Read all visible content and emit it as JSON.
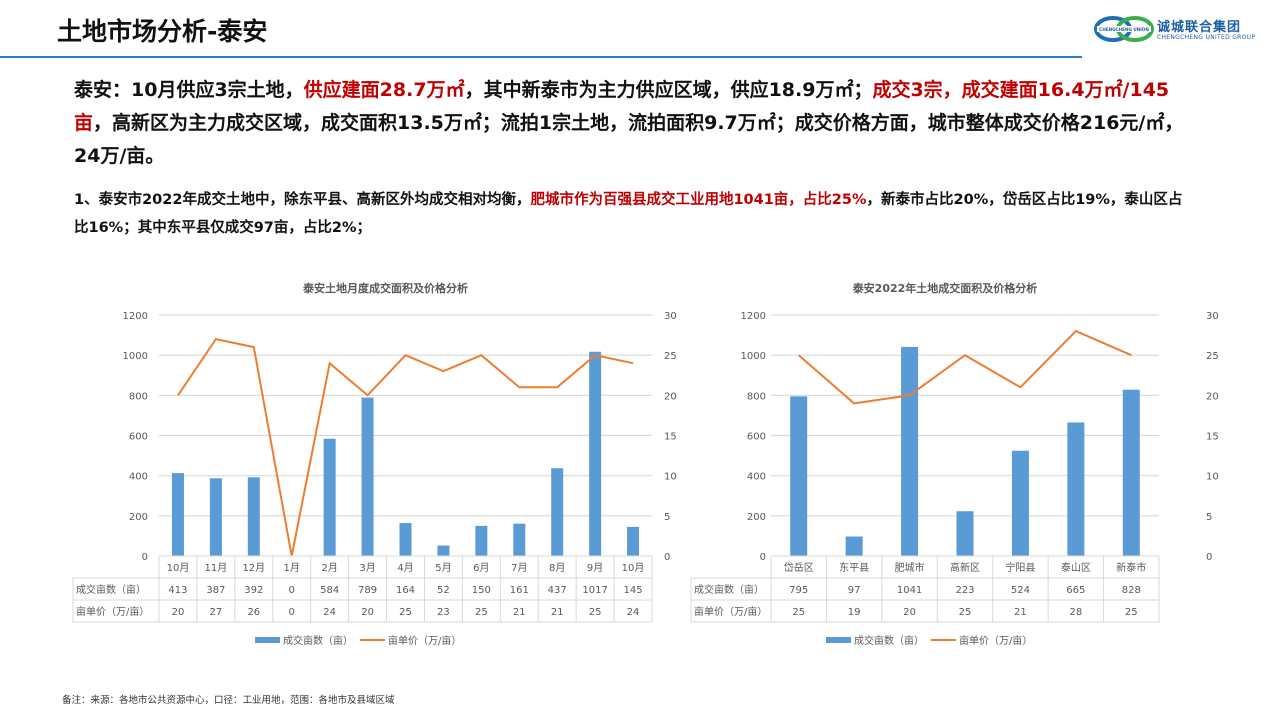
{
  "header": {
    "title": "土地市场分析-泰安",
    "logo": {
      "cn": "诚城联合集团",
      "en": "CHENGCHENG UNITED GROUP",
      "mark_text": "CHENGCHENG UNION"
    }
  },
  "summary": {
    "segments": [
      {
        "text": "泰安：10月供应3宗土地，",
        "red": false
      },
      {
        "text": "供应建面28.7万㎡",
        "red": true
      },
      {
        "text": "，其中新泰市为主力供应区域，供应18.9万㎡；",
        "red": false
      },
      {
        "text": "成交3宗，成交建面16.4万㎡/145亩",
        "red": true
      },
      {
        "text": "，高新区为主力成交区域，成交面积13.5万㎡；流拍1宗土地，流拍面积9.7万㎡；成交价格方面，城市整体成交价格216元/㎡，24万/亩。",
        "red": false
      }
    ]
  },
  "point": {
    "segments": [
      {
        "text": "1、泰安市2022年成交土地中，除东平县、高新区外均成交相对均衡，",
        "red": false
      },
      {
        "text": "肥城市作为百强县成交工业用地1041亩，占比25%",
        "red": true
      },
      {
        "text": "，新泰市占比20%，岱岳区占比19%，泰山区占比16%；其中东平县仅成交97亩，占比2%；",
        "red": false
      }
    ]
  },
  "colors": {
    "bar": "#5b9bd5",
    "line": "#ed7d31",
    "grid": "#d9d9d9",
    "accent_red": "#c00000",
    "rule_blue": "#2e7bc4"
  },
  "chart_data": [
    {
      "type": "bar+line",
      "title": "泰安土地月度成交面积及价格分析",
      "categories": [
        "10月",
        "11月",
        "12月",
        "1月",
        "2月",
        "3月",
        "4月",
        "5月",
        "6月",
        "7月",
        "8月",
        "9月",
        "10月"
      ],
      "series": [
        {
          "name": "成交亩数（亩）",
          "type": "bar",
          "axis": "left",
          "values": [
            413,
            387,
            392,
            0,
            584,
            789,
            164,
            52,
            150,
            161,
            437,
            1017,
            145
          ]
        },
        {
          "name": "亩单价（万/亩）",
          "type": "line",
          "axis": "right",
          "values": [
            20,
            27,
            26,
            0,
            24,
            20,
            25,
            23,
            25,
            21,
            21,
            25,
            24
          ]
        }
      ],
      "y_left": {
        "min": 0,
        "max": 1200,
        "ticks": [
          0,
          200,
          400,
          600,
          800,
          1000,
          1200
        ]
      },
      "y_right": {
        "min": 0,
        "max": 30,
        "ticks": [
          0,
          5,
          10,
          15,
          20,
          25,
          30
        ]
      },
      "grid": true,
      "legend_position": "bottom",
      "data_table": true
    },
    {
      "type": "bar+line",
      "title": "泰安2022年土地成交面积及价格分析",
      "categories": [
        "岱岳区",
        "东平县",
        "肥城市",
        "高新区",
        "宁阳县",
        "泰山区",
        "新泰市"
      ],
      "series": [
        {
          "name": "成交亩数（亩）",
          "type": "bar",
          "axis": "left",
          "values": [
            795,
            97,
            1041,
            223,
            524,
            665,
            828
          ]
        },
        {
          "name": "亩单价（万/亩）",
          "type": "line",
          "axis": "right",
          "values": [
            25,
            19,
            20,
            25,
            21,
            28,
            25
          ]
        }
      ],
      "y_left": {
        "min": 0,
        "max": 1200,
        "ticks": [
          0,
          200,
          400,
          600,
          800,
          1000,
          1200
        ]
      },
      "y_right": {
        "min": 0,
        "max": 30,
        "ticks": [
          0,
          5,
          10,
          15,
          20,
          25,
          30
        ]
      },
      "grid": true,
      "legend_position": "bottom",
      "data_table": true
    }
  ],
  "footnote": "备注：来源：各地市公共资源中心，口径：工业用地，范围：各地市及县域区域"
}
